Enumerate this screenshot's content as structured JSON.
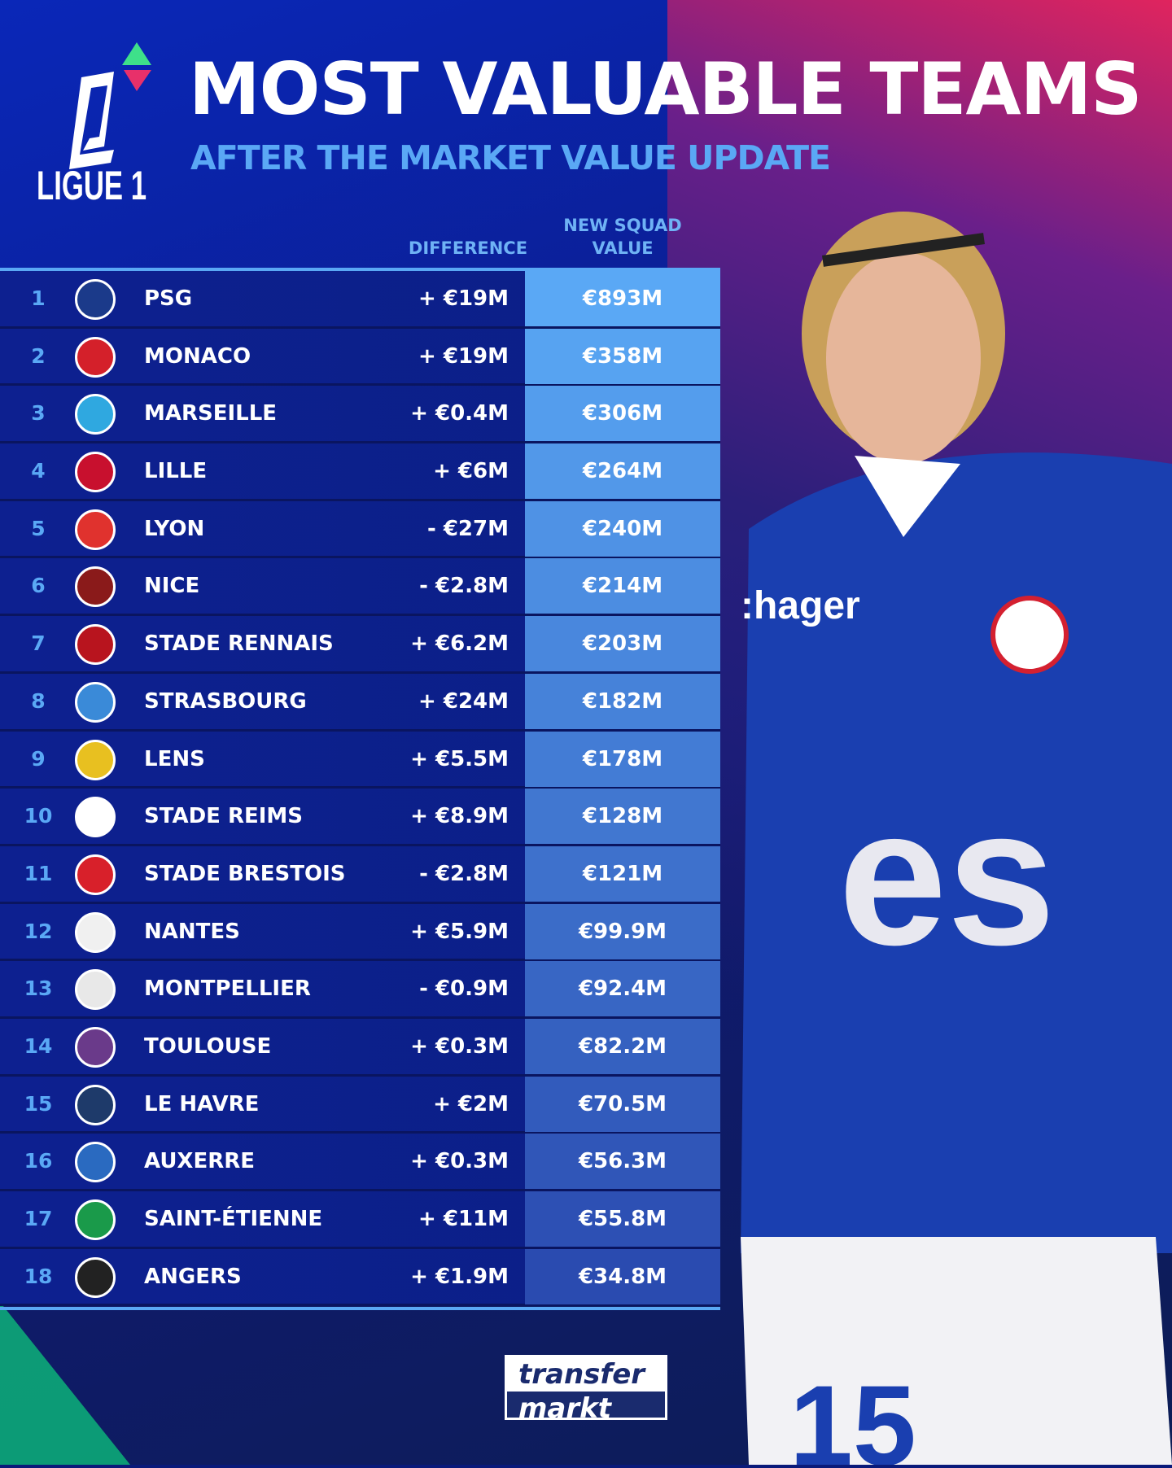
{
  "header": {
    "title": "MOST VALUABLE TEAMS",
    "subtitle": "AFTER THE MARKET VALUE UPDATE",
    "league_logo_text": "LIGUE 1"
  },
  "columns": {
    "difference": "DIFFERENCE",
    "value_line1": "NEW SQUAD",
    "value_line2": "VALUE"
  },
  "colors": {
    "accent": "#5aa8f5",
    "value_top": "#5aa8f5",
    "value_bottom": "#2a4bb0",
    "row": "#0d2090"
  },
  "teams": [
    {
      "rank": "1",
      "name": "PSG",
      "diff": "+ €19M",
      "value": "€893M",
      "crest": "#1b3a8a"
    },
    {
      "rank": "2",
      "name": "MONACO",
      "diff": "+ €19M",
      "value": "€358M",
      "crest": "#d4202a"
    },
    {
      "rank": "3",
      "name": "MARSEILLE",
      "diff": "+ €0.4M",
      "value": "€306M",
      "crest": "#2fa8e0"
    },
    {
      "rank": "4",
      "name": "LILLE",
      "diff": "+ €6M",
      "value": "€264M",
      "crest": "#c8102e"
    },
    {
      "rank": "5",
      "name": "LYON",
      "diff": "- €27M",
      "value": "€240M",
      "crest": "#e0322e"
    },
    {
      "rank": "6",
      "name": "NICE",
      "diff": "- €2.8M",
      "value": "€214M",
      "crest": "#8a1a1a"
    },
    {
      "rank": "7",
      "name": "STADE RENNAIS",
      "diff": "+ €6.2M",
      "value": "€203M",
      "crest": "#b8141e"
    },
    {
      "rank": "8",
      "name": "STRASBOURG",
      "diff": "+ €24M",
      "value": "€182M",
      "crest": "#3a8ad8"
    },
    {
      "rank": "9",
      "name": "LENS",
      "diff": "+ €5.5M",
      "value": "€178M",
      "crest": "#e8c020"
    },
    {
      "rank": "10",
      "name": "STADE REIMS",
      "diff": "+ €8.9M",
      "value": "€128M",
      "crest": "#ffffff"
    },
    {
      "rank": "11",
      "name": "STADE BRESTOIS",
      "diff": "- €2.8M",
      "value": "€121M",
      "crest": "#d8202a"
    },
    {
      "rank": "12",
      "name": "NANTES",
      "diff": "+ €5.9M",
      "value": "€99.9M",
      "crest": "#f0f0f0"
    },
    {
      "rank": "13",
      "name": "MONTPELLIER",
      "diff": "- €0.9M",
      "value": "€92.4M",
      "crest": "#e8e8e8"
    },
    {
      "rank": "14",
      "name": "TOULOUSE",
      "diff": "+ €0.3M",
      "value": "€82.2M",
      "crest": "#6a3a8a"
    },
    {
      "rank": "15",
      "name": "LE HAVRE",
      "diff": "+ €2M",
      "value": "€70.5M",
      "crest": "#1e3a6a"
    },
    {
      "rank": "16",
      "name": "AUXERRE",
      "diff": "+ €0.3M",
      "value": "€56.3M",
      "crest": "#2a6ac0"
    },
    {
      "rank": "17",
      "name": "SAINT-ÉTIENNE",
      "diff": "+ €11M",
      "value": "€55.8M",
      "crest": "#1a9a4a"
    },
    {
      "rank": "18",
      "name": "ANGERS",
      "diff": "+ €1.9M",
      "value": "€34.8M",
      "crest": "#222222"
    }
  ],
  "player_photo": {
    "sponsor": ":hager",
    "shirt_logo": "es",
    "number": "15"
  },
  "footer": {
    "brand_line1": "transfer",
    "brand_line2": "markt"
  }
}
